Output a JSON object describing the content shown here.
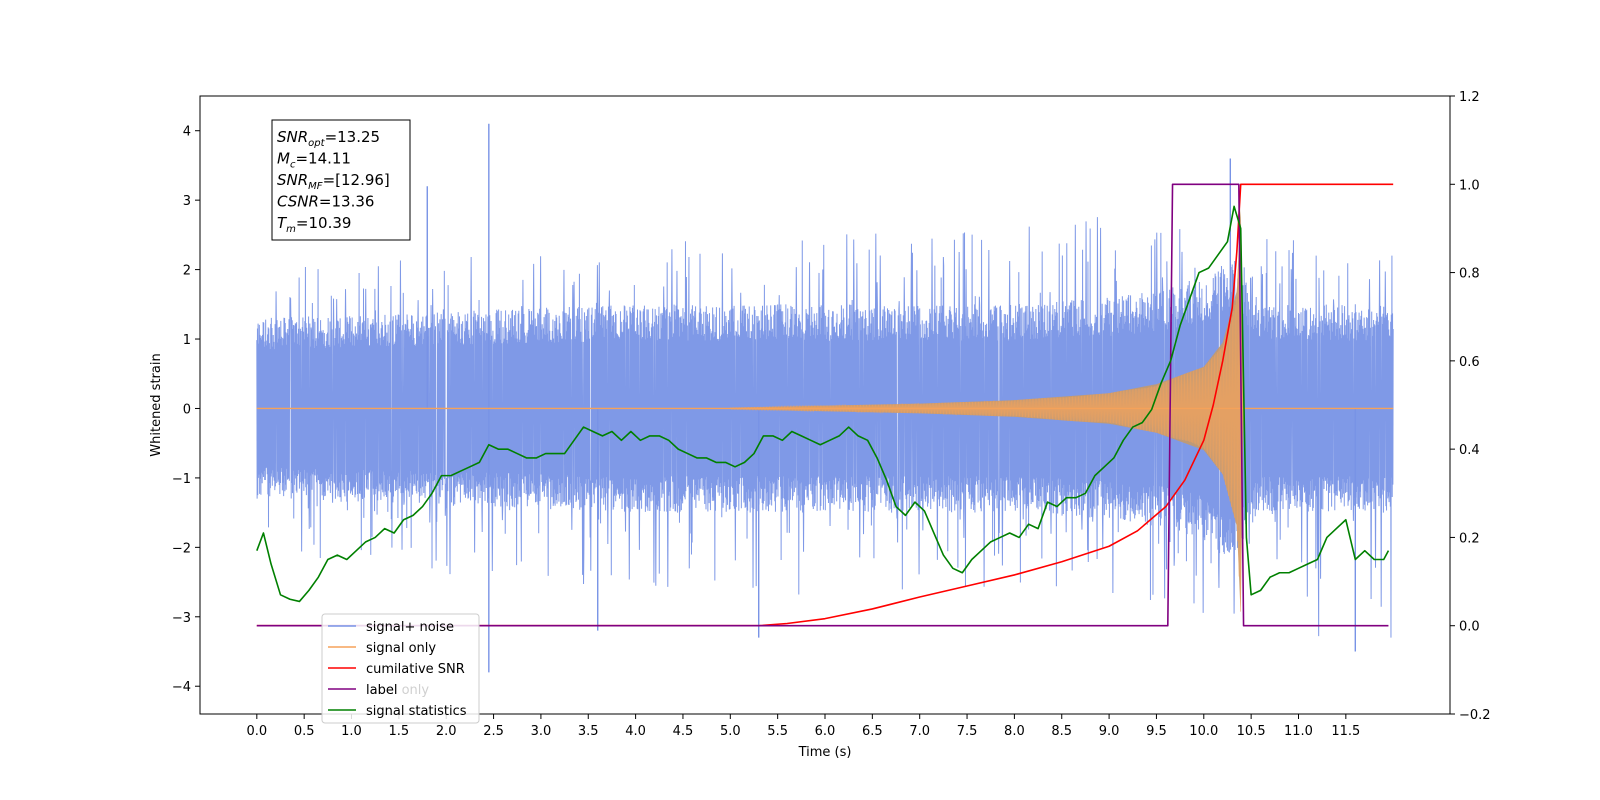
{
  "chart_data": {
    "type": "line",
    "title": "",
    "xlabel": "Time (s)",
    "ylabel": "Whitened strain",
    "y2label": "",
    "xlim": [
      -0.6,
      12.6
    ],
    "ylim": [
      -4.4,
      4.5
    ],
    "y2lim": [
      -0.2,
      1.2
    ],
    "x_ticks": [
      "0.0",
      "0.5",
      "1.0",
      "1.5",
      "2.0",
      "2.5",
      "3.0",
      "3.5",
      "4.0",
      "4.5",
      "5.0",
      "5.5",
      "6.0",
      "6.5",
      "7.0",
      "7.5",
      "8.0",
      "8.5",
      "9.0",
      "9.5",
      "10.0",
      "10.5",
      "11.0",
      "11.5"
    ],
    "y_ticks": [
      "4",
      "3",
      "2",
      "1",
      "0",
      "−1",
      "−2",
      "−3",
      "−4"
    ],
    "y2_ticks": [
      "1.2",
      "1.0",
      "0.8",
      "0.6",
      "0.4",
      "0.2",
      "0.0",
      "−0.2"
    ],
    "legend_position": "lower-left",
    "annotation": {
      "lines": [
        {
          "name": "SNR",
          "sub": "opt",
          "value": "=13.25"
        },
        {
          "name": "M",
          "sub": "c",
          "value": "=14.11"
        },
        {
          "name": "SNR",
          "sub": "MF",
          "value": "=[12.96]"
        },
        {
          "name": "CSNR",
          "sub": "",
          "value": "=13.36"
        },
        {
          "name": "T",
          "sub": "m",
          "value": "=10.39"
        }
      ]
    },
    "series": [
      {
        "name": "signal+ noise",
        "axis": "left",
        "color": "#7893e6",
        "envelope": {
          "x": [
            0.0,
            2.0,
            4.0,
            6.0,
            8.0,
            9.0,
            9.5,
            10.0,
            10.3,
            10.39,
            10.6,
            11.0,
            12.0
          ],
          "upper": [
            2.0,
            2.2,
            2.4,
            2.5,
            2.6,
            2.8,
            3.0,
            3.3,
            3.6,
            3.6,
            2.6,
            2.4,
            2.3
          ],
          "lower": [
            -2.2,
            -2.4,
            -2.6,
            -2.7,
            -2.6,
            -2.8,
            -2.9,
            -3.0,
            -3.1,
            -3.0,
            -3.3,
            -3.4,
            -3.4
          ],
          "core_upper": [
            1.3,
            1.4,
            1.5,
            1.5,
            1.5,
            1.6,
            1.7,
            1.9,
            2.2,
            2.0,
            1.5,
            1.5,
            1.5
          ],
          "core_lower": [
            -1.3,
            -1.4,
            -1.5,
            -1.5,
            -1.5,
            -1.6,
            -1.7,
            -1.9,
            -2.2,
            -2.0,
            -1.5,
            -1.5,
            -1.5
          ]
        },
        "peaks": [
          {
            "x": 2.45,
            "y": 4.1
          },
          {
            "x": 2.45,
            "y": -3.8
          },
          {
            "x": 10.28,
            "y": 3.6
          },
          {
            "x": 11.6,
            "y": -3.5
          },
          {
            "x": 1.8,
            "y": 3.2
          },
          {
            "x": 3.6,
            "y": -3.2
          },
          {
            "x": 5.3,
            "y": -3.3
          }
        ]
      },
      {
        "name": "signal only",
        "axis": "left",
        "color": "#f5a25a",
        "fill_color": "#c49a6c",
        "amplitude": {
          "x": [
            0.0,
            5.0,
            6.0,
            7.0,
            8.0,
            9.0,
            9.5,
            10.0,
            10.2,
            10.35,
            10.39,
            10.42,
            12.0
          ],
          "values": [
            0.0,
            0.01,
            0.04,
            0.07,
            0.12,
            0.22,
            0.35,
            0.6,
            0.95,
            1.7,
            3.0,
            0.0,
            0.0
          ]
        }
      },
      {
        "name": "cumilative SNR",
        "axis": "right",
        "color": "#ff0000",
        "x": [
          0.0,
          5.3,
          5.6,
          6.0,
          6.5,
          7.0,
          7.5,
          8.0,
          8.5,
          9.0,
          9.3,
          9.6,
          9.8,
          10.0,
          10.1,
          10.2,
          10.3,
          10.35,
          10.39,
          10.42,
          12.0
        ],
        "values": [
          0.0,
          0.0,
          0.005,
          0.016,
          0.038,
          0.065,
          0.09,
          0.115,
          0.145,
          0.18,
          0.215,
          0.27,
          0.33,
          0.42,
          0.5,
          0.6,
          0.72,
          0.85,
          1.0,
          1.0,
          1.0
        ]
      },
      {
        "name": "label",
        "axis": "right",
        "color": "#800080",
        "x": [
          0.0,
          9.62,
          9.67,
          10.37,
          10.42,
          11.95
        ],
        "values": [
          0.0,
          0.0,
          1.0,
          1.0,
          0.0,
          0.0
        ]
      },
      {
        "name": "label only",
        "axis": "right",
        "color": "#e0e0e0",
        "x": [],
        "values": []
      },
      {
        "name": "signal statistics",
        "axis": "right",
        "color": "#008000",
        "x": [
          0.0,
          0.07,
          0.15,
          0.25,
          0.35,
          0.45,
          0.55,
          0.65,
          0.75,
          0.85,
          0.95,
          1.05,
          1.15,
          1.25,
          1.35,
          1.45,
          1.55,
          1.65,
          1.75,
          1.85,
          1.95,
          2.05,
          2.15,
          2.25,
          2.35,
          2.45,
          2.55,
          2.65,
          2.75,
          2.85,
          2.95,
          3.05,
          3.15,
          3.25,
          3.35,
          3.45,
          3.55,
          3.65,
          3.75,
          3.85,
          3.95,
          4.05,
          4.15,
          4.25,
          4.35,
          4.45,
          4.55,
          4.65,
          4.75,
          4.85,
          4.95,
          5.05,
          5.15,
          5.25,
          5.35,
          5.45,
          5.55,
          5.65,
          5.75,
          5.85,
          5.95,
          6.05,
          6.15,
          6.25,
          6.35,
          6.45,
          6.55,
          6.65,
          6.75,
          6.85,
          6.95,
          7.05,
          7.15,
          7.25,
          7.35,
          7.45,
          7.55,
          7.65,
          7.75,
          7.85,
          7.95,
          8.05,
          8.15,
          8.25,
          8.35,
          8.45,
          8.55,
          8.65,
          8.75,
          8.85,
          8.95,
          9.05,
          9.15,
          9.25,
          9.35,
          9.45,
          9.55,
          9.65,
          9.75,
          9.85,
          9.95,
          10.05,
          10.15,
          10.25,
          10.32,
          10.39,
          10.45,
          10.5,
          10.6,
          10.7,
          10.8,
          10.9,
          11.0,
          11.1,
          11.2,
          11.3,
          11.4,
          11.5,
          11.6,
          11.7,
          11.8,
          11.9,
          11.95
        ],
        "values": [
          0.17,
          0.21,
          0.14,
          0.07,
          0.06,
          0.055,
          0.08,
          0.11,
          0.15,
          0.16,
          0.15,
          0.17,
          0.19,
          0.2,
          0.22,
          0.21,
          0.24,
          0.25,
          0.27,
          0.3,
          0.34,
          0.34,
          0.35,
          0.36,
          0.37,
          0.41,
          0.4,
          0.4,
          0.39,
          0.38,
          0.38,
          0.39,
          0.39,
          0.39,
          0.42,
          0.45,
          0.44,
          0.43,
          0.44,
          0.42,
          0.44,
          0.42,
          0.43,
          0.43,
          0.42,
          0.4,
          0.39,
          0.38,
          0.38,
          0.37,
          0.37,
          0.36,
          0.37,
          0.39,
          0.43,
          0.43,
          0.42,
          0.44,
          0.43,
          0.42,
          0.41,
          0.42,
          0.43,
          0.45,
          0.43,
          0.42,
          0.38,
          0.33,
          0.27,
          0.25,
          0.28,
          0.26,
          0.21,
          0.16,
          0.13,
          0.12,
          0.15,
          0.17,
          0.19,
          0.2,
          0.21,
          0.2,
          0.23,
          0.22,
          0.28,
          0.27,
          0.29,
          0.29,
          0.3,
          0.34,
          0.36,
          0.38,
          0.42,
          0.45,
          0.46,
          0.49,
          0.55,
          0.6,
          0.68,
          0.74,
          0.8,
          0.81,
          0.84,
          0.87,
          0.95,
          0.9,
          0.2,
          0.07,
          0.08,
          0.11,
          0.12,
          0.12,
          0.13,
          0.14,
          0.15,
          0.2,
          0.22,
          0.24,
          0.15,
          0.17,
          0.15,
          0.15,
          0.17
        ]
      }
    ]
  }
}
